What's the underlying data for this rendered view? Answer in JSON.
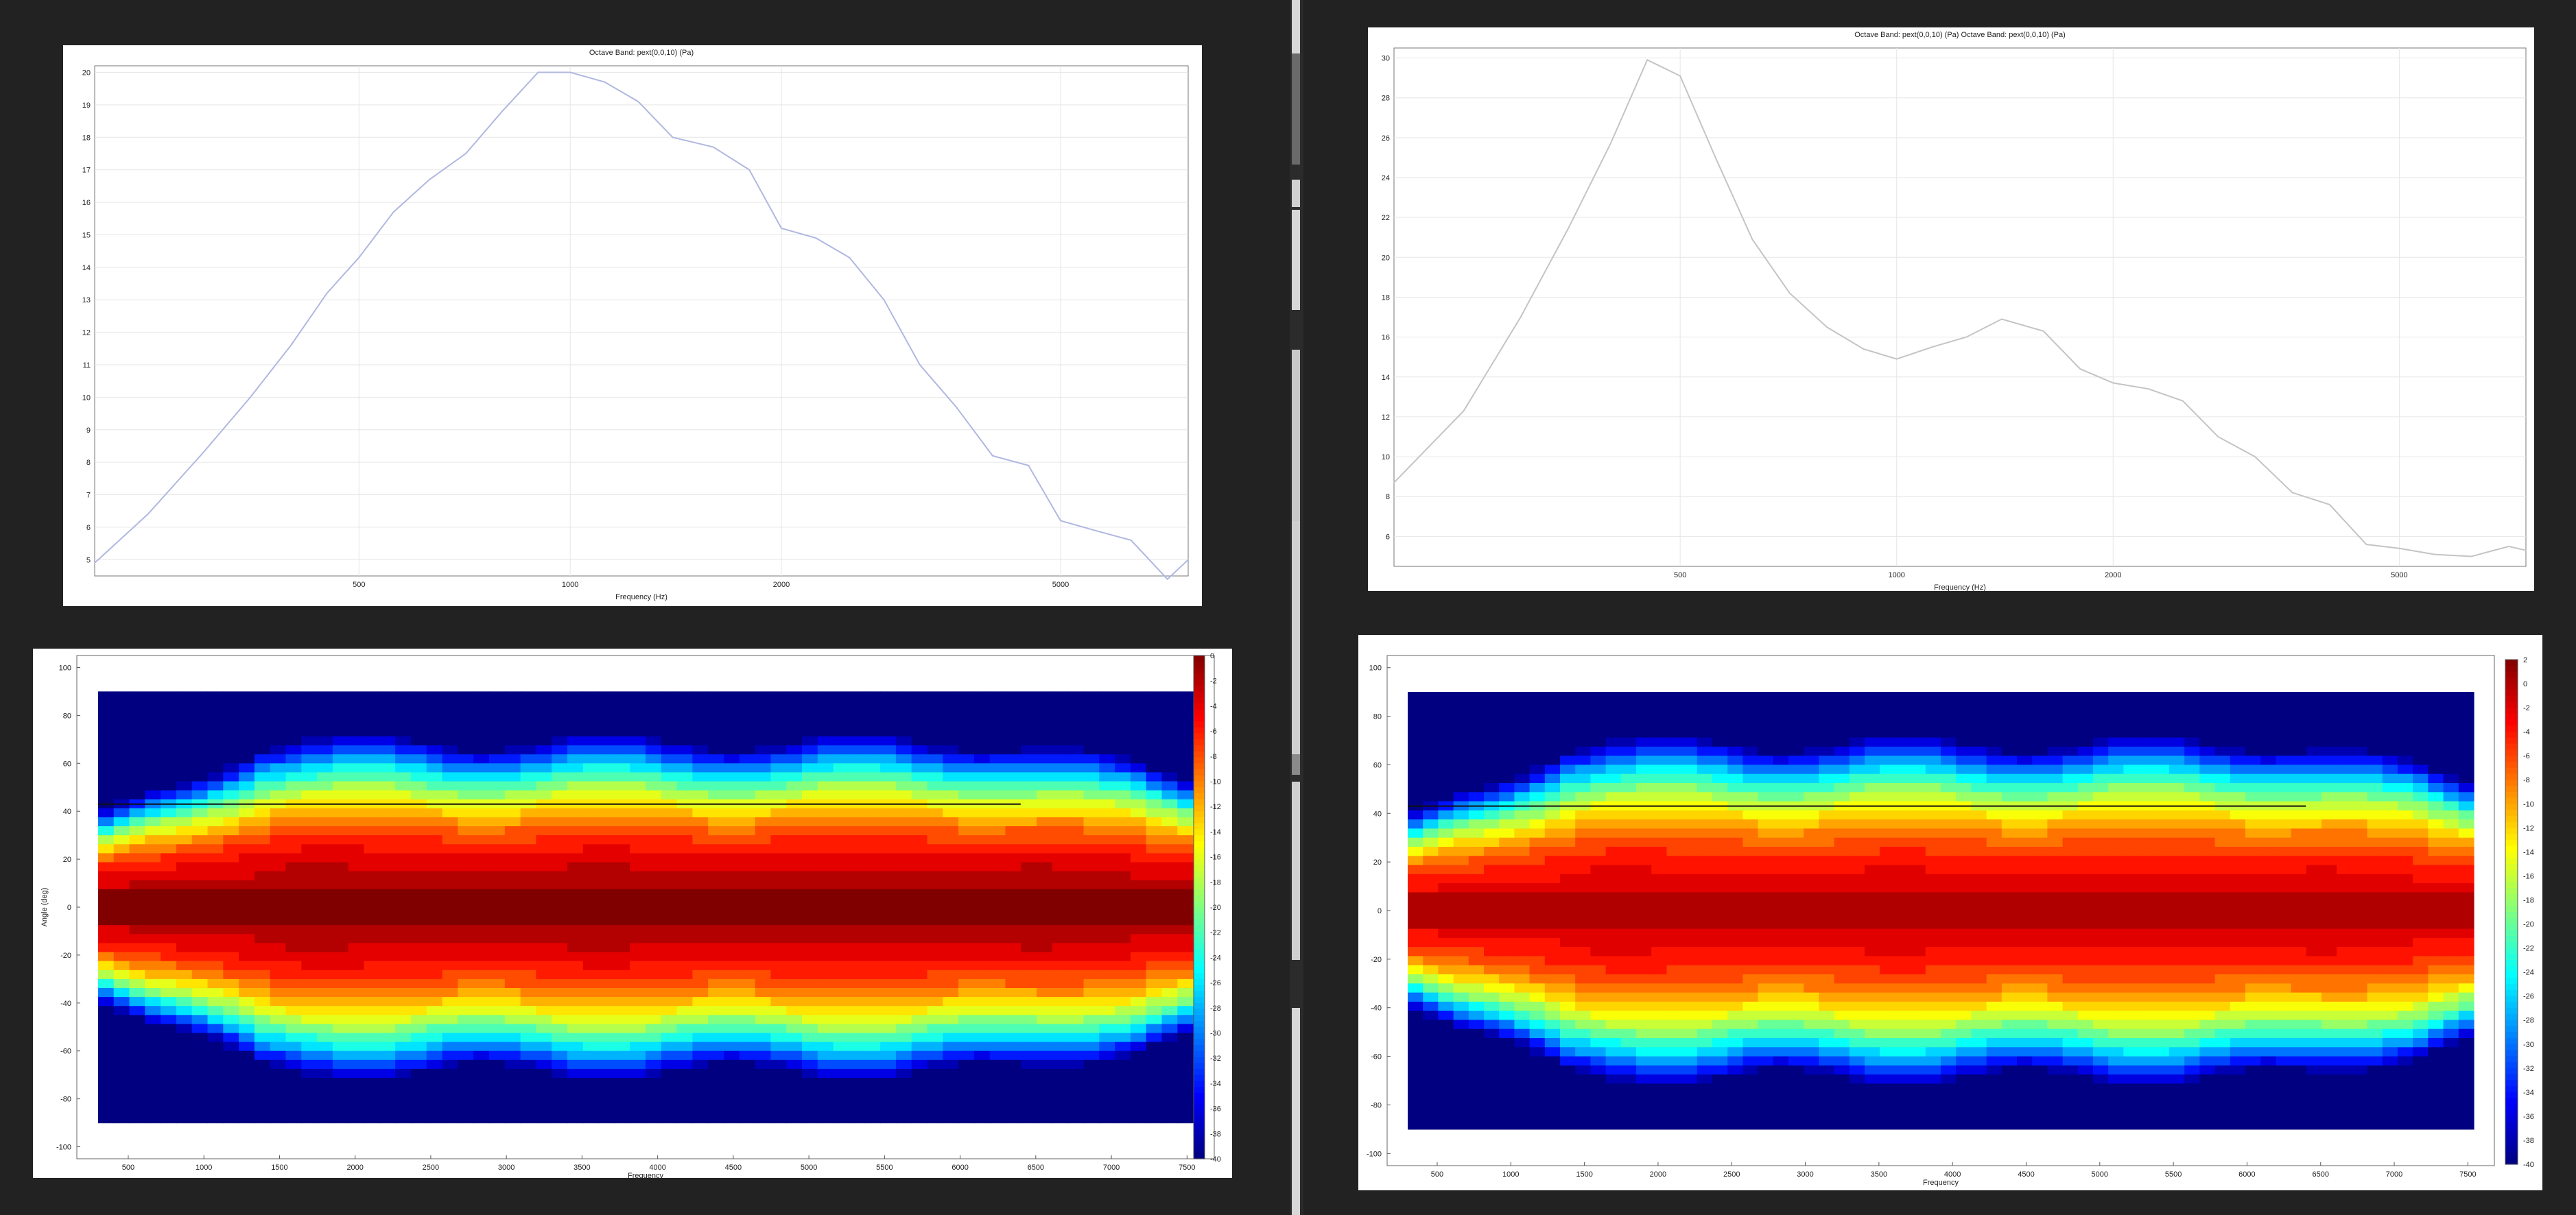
{
  "colors": {
    "background": "#222222",
    "panel": "#ffffff",
    "line_left": "#b0b8e0",
    "line_right": "#c4c4c4",
    "grid": "#e6e6e6",
    "overlay_line": "#111111"
  },
  "chart_data": [
    {
      "id": "top-left",
      "type": "line",
      "title": "Octave Band: pext(0,0,10) (Pa)",
      "xlabel": "Frequency (Hz)",
      "ylabel": "",
      "xscale": "log",
      "xlim": [
        210,
        7600
      ],
      "ylim": [
        4.5,
        20.2
      ],
      "grid": true,
      "xticks": [
        500,
        1000,
        2000,
        5000
      ],
      "yticks": [
        5,
        6,
        7,
        8,
        9,
        10,
        11,
        12,
        13,
        14,
        15,
        16,
        17,
        18,
        19,
        20
      ],
      "series": [
        {
          "x": [
            210,
            250,
            300,
            350,
            400,
            450,
            500,
            560,
            630,
            710,
            800,
            900,
            1000,
            1120,
            1250,
            1400,
            1600,
            1800,
            2000,
            2240,
            2500,
            2800,
            3150,
            3550,
            4000,
            4500,
            5000,
            5600,
            6300,
            7100,
            7600
          ],
          "y": [
            4.9,
            6.4,
            8.3,
            10.0,
            11.6,
            13.2,
            14.3,
            15.7,
            16.7,
            17.5,
            18.8,
            20.0,
            20.0,
            19.7,
            19.1,
            18.0,
            17.7,
            17.0,
            15.2,
            14.9,
            14.3,
            13.0,
            11.0,
            9.7,
            8.2,
            7.9,
            6.2,
            5.9,
            5.6,
            4.4,
            5.0
          ]
        }
      ]
    },
    {
      "id": "top-right",
      "type": "line",
      "title": "Octave Band: pext(0,0,10) (Pa)  Octave Band: pext(0,0,10) (Pa)",
      "xlabel": "Frequency (Hz)",
      "ylabel": "",
      "xscale": "log",
      "xlim": [
        200,
        7500
      ],
      "ylim": [
        4.5,
        30.5
      ],
      "grid": true,
      "xticks": [
        500,
        1000,
        2000,
        5000
      ],
      "yticks": [
        6,
        8,
        10,
        12,
        14,
        16,
        18,
        20,
        22,
        24,
        26,
        28,
        30
      ],
      "series": [
        {
          "x": [
            200,
            250,
            300,
            350,
            400,
            450,
            500,
            560,
            630,
            710,
            800,
            900,
            1000,
            1120,
            1250,
            1400,
            1600,
            1800,
            2000,
            2240,
            2500,
            2800,
            3150,
            3550,
            4000,
            4500,
            5000,
            5600,
            6300,
            7100,
            7500
          ],
          "y": [
            8.7,
            12.3,
            17.0,
            21.5,
            25.7,
            29.9,
            29.1,
            25.0,
            20.9,
            18.2,
            16.5,
            15.4,
            14.9,
            15.5,
            16.0,
            16.9,
            16.3,
            14.4,
            13.7,
            13.4,
            12.8,
            11.0,
            10.0,
            8.2,
            7.6,
            5.6,
            5.4,
            5.1,
            5.0,
            5.5,
            5.3
          ]
        }
      ]
    },
    {
      "id": "bottom-left",
      "type": "heatmap",
      "title": "",
      "xlabel": "Frequency",
      "ylabel": "Angle (deg)",
      "xlim": [
        160,
        7680
      ],
      "ylim": [
        -105,
        105
      ],
      "data_extent": {
        "x": [
          300,
          7540
        ],
        "y": [
          -90,
          90
        ]
      },
      "xticks": [
        500,
        1000,
        1500,
        2000,
        2500,
        3000,
        3500,
        4000,
        4500,
        5000,
        5500,
        6000,
        6500,
        7000,
        7500
      ],
      "yticks": [
        100,
        80,
        60,
        40,
        20,
        0,
        -20,
        -40,
        -60,
        -80,
        -100
      ],
      "colorbar": {
        "min": -40,
        "max": 0,
        "ticks": [
          0,
          -2,
          -4,
          -6,
          -8,
          -10,
          -12,
          -14,
          -16,
          -18,
          -20,
          -22,
          -24,
          -26,
          -28,
          -30,
          -32,
          -34,
          -36,
          -38,
          -40
        ]
      },
      "overlay_line": {
        "y": 43,
        "x": [
          300,
          6400
        ]
      }
    },
    {
      "id": "bottom-right",
      "type": "heatmap",
      "title": "",
      "xlabel": "Frequency",
      "ylabel": "",
      "xlim": [
        160,
        7680
      ],
      "ylim": [
        -105,
        105
      ],
      "data_extent": {
        "x": [
          300,
          7540
        ],
        "y": [
          -90,
          90
        ]
      },
      "xticks": [
        500,
        1000,
        1500,
        2000,
        2500,
        3000,
        3500,
        4000,
        4500,
        5000,
        5500,
        6000,
        6500,
        7000,
        7500
      ],
      "yticks": [
        100,
        80,
        60,
        40,
        20,
        0,
        -20,
        -40,
        -60,
        -80,
        -100
      ],
      "colorbar": {
        "min": -40,
        "max": 2,
        "ticks": [
          2,
          0,
          -2,
          -4,
          -6,
          -8,
          -10,
          -12,
          -14,
          -16,
          -18,
          -20,
          -22,
          -24,
          -26,
          -28,
          -30,
          -32,
          -34,
          -36,
          -38,
          -40
        ]
      },
      "overlay_line": {
        "y": 43,
        "x": [
          300,
          6400
        ]
      }
    }
  ]
}
